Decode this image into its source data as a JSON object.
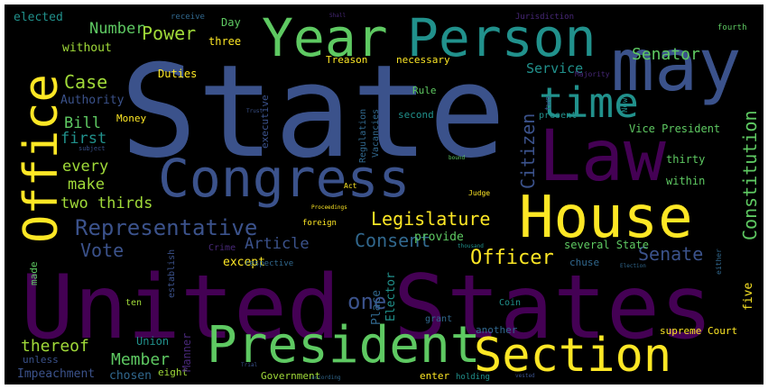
{
  "image": {
    "kind": "word cloud",
    "background": "#000000",
    "border": "#ffffff",
    "palette": [
      "#440154",
      "#3b528b",
      "#21918c",
      "#5ec962",
      "#fde725"
    ]
  },
  "words": [
    {
      "id": "w-state",
      "text": "State",
      "color": "#3b528b"
    },
    {
      "id": "w-united-states",
      "text": "United States",
      "color": "#440154"
    },
    {
      "id": "w-year",
      "text": "Year",
      "color": "#5ec962"
    },
    {
      "id": "w-person",
      "text": "Person",
      "color": "#21918c"
    },
    {
      "id": "w-may",
      "text": "may",
      "color": "#3b528b"
    },
    {
      "id": "w-time",
      "text": "time",
      "color": "#21918c"
    },
    {
      "id": "w-law",
      "text": "Law",
      "color": "#440154"
    },
    {
      "id": "w-congress",
      "text": "Congress",
      "color": "#3b528b"
    },
    {
      "id": "w-office",
      "text": "Office",
      "color": "#fde725"
    },
    {
      "id": "w-house",
      "text": "House",
      "color": "#fde725"
    },
    {
      "id": "w-president",
      "text": "President",
      "color": "#5ec962"
    },
    {
      "id": "w-section",
      "text": "Section",
      "color": "#fde725"
    },
    {
      "id": "w-power",
      "text": "Power",
      "color": "#a0da39"
    },
    {
      "id": "w-number",
      "text": "Number",
      "color": "#5ec962"
    },
    {
      "id": "w-case",
      "text": "Case",
      "color": "#a0da39"
    },
    {
      "id": "w-bill",
      "text": "Bill",
      "color": "#5ec962"
    },
    {
      "id": "w-first",
      "text": "first",
      "color": "#21918c"
    },
    {
      "id": "w-every",
      "text": "every",
      "color": "#a0da39"
    },
    {
      "id": "w-make",
      "text": "make",
      "color": "#a0da39"
    },
    {
      "id": "w-two-thirds",
      "text": "two thirds",
      "color": "#a0da39"
    },
    {
      "id": "w-representative",
      "text": "Representative",
      "color": "#3b528b"
    },
    {
      "id": "w-vote",
      "text": "Vote",
      "color": "#3b528b"
    },
    {
      "id": "w-article",
      "text": "Article",
      "color": "#3b528b"
    },
    {
      "id": "w-consent",
      "text": "Consent",
      "color": "#31688e"
    },
    {
      "id": "w-legislature",
      "text": "Legislature",
      "color": "#fde725"
    },
    {
      "id": "w-citizen",
      "text": "Citizen",
      "color": "#3b528b"
    },
    {
      "id": "w-senator",
      "text": "Senator",
      "color": "#5ec962"
    },
    {
      "id": "w-service",
      "text": "Service",
      "color": "#21918c"
    },
    {
      "id": "w-constitution",
      "text": "Constitution",
      "color": "#5ec962"
    },
    {
      "id": "w-senate",
      "text": "Senate",
      "color": "#3b528b"
    },
    {
      "id": "w-officer",
      "text": "Officer",
      "color": "#fde725"
    },
    {
      "id": "w-one",
      "text": "one",
      "color": "#3b528b"
    },
    {
      "id": "w-thereof",
      "text": "thereof",
      "color": "#a0da39"
    },
    {
      "id": "w-member",
      "text": "Member",
      "color": "#5ec962"
    },
    {
      "id": "w-impeachment",
      "text": "Impeachment",
      "color": "#3b528b"
    },
    {
      "id": "w-chosen",
      "text": "chosen",
      "color": "#31688e"
    },
    {
      "id": "w-eight",
      "text": "eight",
      "color": "#a0da39"
    },
    {
      "id": "w-unless",
      "text": "unless",
      "color": "#3b528b"
    },
    {
      "id": "w-union",
      "text": "Union",
      "color": "#21918c"
    },
    {
      "id": "w-manner",
      "text": "Manner",
      "color": "#482878"
    },
    {
      "id": "w-except",
      "text": "except",
      "color": "#fde725"
    },
    {
      "id": "w-place",
      "text": "Place",
      "color": "#31688e"
    },
    {
      "id": "w-elector",
      "text": "Elector",
      "color": "#21918c"
    },
    {
      "id": "w-provide",
      "text": "provide",
      "color": "#5ec962"
    },
    {
      "id": "w-several-state",
      "text": "several State",
      "color": "#5ec962"
    },
    {
      "id": "w-chuse",
      "text": "chuse",
      "color": "#31688e"
    },
    {
      "id": "w-five",
      "text": "five",
      "color": "#fde725"
    },
    {
      "id": "w-another",
      "text": "another",
      "color": "#31688e"
    },
    {
      "id": "w-supreme-court",
      "text": "supreme Court",
      "color": "#fde725"
    },
    {
      "id": "w-government",
      "text": "Government",
      "color": "#a0da39"
    },
    {
      "id": "w-enter",
      "text": "enter",
      "color": "#fde725"
    },
    {
      "id": "w-holding",
      "text": "holding",
      "color": "#21918c"
    },
    {
      "id": "w-elected",
      "text": "elected",
      "color": "#21918c"
    },
    {
      "id": "w-without",
      "text": "without",
      "color": "#a0da39"
    },
    {
      "id": "w-authority",
      "text": "Authority",
      "color": "#3b528b"
    },
    {
      "id": "w-duties",
      "text": "Duties",
      "color": "#fde725"
    },
    {
      "id": "w-money",
      "text": "Money",
      "color": "#fde725"
    },
    {
      "id": "w-day",
      "text": "Day",
      "color": "#5ec962"
    },
    {
      "id": "w-three",
      "text": "three",
      "color": "#fde725"
    },
    {
      "id": "w-receive",
      "text": "receive",
      "color": "#31688e"
    },
    {
      "id": "w-treason",
      "text": "Treason",
      "color": "#fde725"
    },
    {
      "id": "w-necessary",
      "text": "necessary",
      "color": "#fde725"
    },
    {
      "id": "w-executive",
      "text": "executive",
      "color": "#3b528b"
    },
    {
      "id": "w-regulation",
      "text": "Regulation",
      "color": "#31688e"
    },
    {
      "id": "w-vacancies",
      "text": "Vacancies",
      "color": "#31688e"
    },
    {
      "id": "w-rule",
      "text": "Rule",
      "color": "#5ec962"
    },
    {
      "id": "w-second",
      "text": "second",
      "color": "#21918c"
    },
    {
      "id": "w-present",
      "text": "present",
      "color": "#21918c"
    },
    {
      "id": "w-vice-president",
      "text": "Vice President",
      "color": "#5ec962"
    },
    {
      "id": "w-thirty",
      "text": "thirty",
      "color": "#5ec962"
    },
    {
      "id": "w-within",
      "text": "within",
      "color": "#5ec962"
    },
    {
      "id": "w-jurisdiction",
      "text": "Jurisdiction",
      "color": "#482878"
    },
    {
      "id": "w-fourth",
      "text": "fourth",
      "color": "#5ec962"
    },
    {
      "id": "w-majority",
      "text": "Majority",
      "color": "#482878"
    },
    {
      "id": "w-two",
      "text": "two",
      "color": "#3b528b"
    },
    {
      "id": "w-now",
      "text": "Now",
      "color": "#21918c"
    },
    {
      "id": "w-crime",
      "text": "Crime",
      "color": "#482878"
    },
    {
      "id": "w-respective",
      "text": "respective",
      "color": "#31688e"
    },
    {
      "id": "w-establish",
      "text": "establish",
      "color": "#3b528b"
    },
    {
      "id": "w-made",
      "text": "made",
      "color": "#5ec962"
    },
    {
      "id": "w-ten",
      "text": "ten",
      "color": "#a0da39"
    },
    {
      "id": "w-coin",
      "text": "Coin",
      "color": "#21918c"
    },
    {
      "id": "w-grant",
      "text": "grant",
      "color": "#31688e"
    },
    {
      "id": "w-judge",
      "text": "Judge",
      "color": "#fde725"
    },
    {
      "id": "w-act",
      "text": "Act",
      "color": "#fde725"
    },
    {
      "id": "w-proceedings",
      "text": "Proceedings",
      "color": "#fde725"
    },
    {
      "id": "w-foreign",
      "text": "foreign",
      "color": "#fde725"
    },
    {
      "id": "w-thousand",
      "text": "thousand",
      "color": "#21918c"
    },
    {
      "id": "w-election",
      "text": "Election",
      "color": "#31688e"
    },
    {
      "id": "w-either",
      "text": "either",
      "color": "#31688e"
    },
    {
      "id": "w-trust",
      "text": "Trust",
      "color": "#3b528b"
    },
    {
      "id": "w-subject",
      "text": "subject",
      "color": "#3b528b"
    },
    {
      "id": "w-bound",
      "text": "bound",
      "color": "#5ec962"
    },
    {
      "id": "w-shall",
      "text": "Shall",
      "color": "#482878"
    },
    {
      "id": "w-according",
      "text": "according",
      "color": "#31688e"
    },
    {
      "id": "w-vested",
      "text": "vested",
      "color": "#3b528b"
    },
    {
      "id": "w-trial",
      "text": "Trial",
      "color": "#3b528b"
    }
  ]
}
